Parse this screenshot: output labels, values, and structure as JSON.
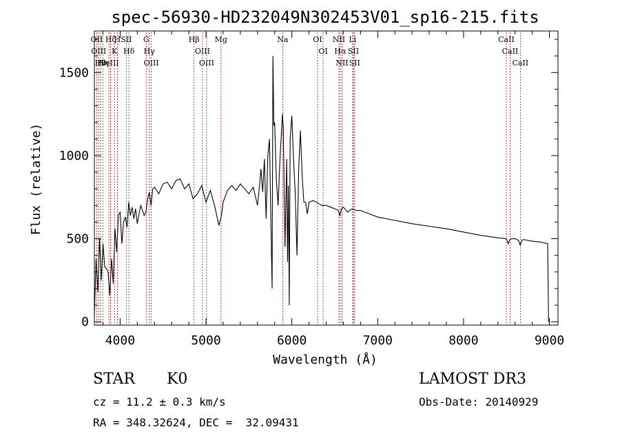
{
  "chart_data": {
    "type": "line",
    "title": "spec-56930-HD232049N302453V01_sp16-215.fits",
    "xlabel": "Wavelength (Å)",
    "ylabel": "Flux (relative)",
    "xlim": [
      3700,
      9100
    ],
    "ylim": [
      -20,
      1750
    ],
    "x_ticks": [
      4000,
      5000,
      6000,
      7000,
      8000,
      9000
    ],
    "y_ticks": [
      0,
      500,
      1000,
      1500
    ],
    "grid": false,
    "line_color": "#000000",
    "marker_color": "#cc0000",
    "series": [
      {
        "x": [
          3700,
          3720,
          3740,
          3760,
          3780,
          3800,
          3820,
          3840,
          3860,
          3880,
          3900,
          3920,
          3940,
          3960,
          3980,
          4000,
          4020,
          4040,
          4060,
          4080,
          4100,
          4120,
          4140,
          4160,
          4180,
          4200,
          4220,
          4240,
          4260,
          4280,
          4300,
          4320,
          4340,
          4360,
          4380,
          4400,
          4450,
          4500,
          4550,
          4600,
          4650,
          4700,
          4750,
          4800,
          4850,
          4900,
          4950,
          5000,
          5050,
          5100,
          5150,
          5180,
          5200,
          5250,
          5300,
          5350,
          5400,
          5450,
          5500,
          5550,
          5600,
          5620,
          5640,
          5660,
          5680,
          5700,
          5720,
          5740,
          5760,
          5770,
          5780,
          5790,
          5800,
          5820,
          5840,
          5860,
          5880,
          5890,
          5900,
          5920,
          5940,
          5950,
          5960,
          5970,
          5980,
          6000,
          6020,
          6040,
          6060,
          6080,
          6100,
          6120,
          6140,
          6160,
          6180,
          6200,
          6250,
          6300,
          6350,
          6400,
          6450,
          6500,
          6540,
          6560,
          6580,
          6600,
          6650,
          6700,
          6750,
          6800,
          6900,
          7000,
          7200,
          7400,
          7600,
          7800,
          8000,
          8200,
          8400,
          8500,
          8520,
          8540,
          8560,
          8600,
          8640,
          8660,
          8680,
          8700,
          8800,
          8900,
          8980,
          8990,
          9000
        ],
        "y": [
          40,
          380,
          180,
          500,
          250,
          470,
          330,
          320,
          300,
          160,
          380,
          230,
          560,
          420,
          640,
          660,
          470,
          600,
          630,
          570,
          720,
          640,
          690,
          620,
          680,
          590,
          650,
          700,
          670,
          640,
          660,
          740,
          780,
          700,
          800,
          810,
          770,
          830,
          840,
          800,
          850,
          860,
          800,
          830,
          740,
          770,
          820,
          720,
          790,
          700,
          580,
          640,
          720,
          790,
          820,
          790,
          830,
          800,
          770,
          810,
          700,
          800,
          920,
          780,
          980,
          620,
          1000,
          1100,
          500,
          200,
          1600,
          1180,
          1200,
          850,
          700,
          960,
          1150,
          1250,
          1170,
          450,
          980,
          360,
          820,
          100,
          1100,
          1240,
          980,
          770,
          400,
          920,
          1150,
          880,
          720,
          720,
          650,
          720,
          730,
          715,
          700,
          700,
          690,
          680,
          670,
          640,
          680,
          690,
          660,
          680,
          670,
          670,
          650,
          630,
          610,
          590,
          575,
          560,
          540,
          520,
          505,
          500,
          470,
          495,
          500,
          500,
          490,
          460,
          490,
          495,
          485,
          480,
          470,
          0,
          0
        ]
      }
    ],
    "line_markers": [
      {
        "x": 3727,
        "label": "OII"
      },
      {
        "x": 3750,
        "label": "OIII"
      },
      {
        "x": 3771,
        "label": "Hθ"
      },
      {
        "x": 3798,
        "label": "Hη"
      },
      {
        "x": 3869,
        "label": "NeIII"
      },
      {
        "x": 3889,
        "label": "Hζ"
      },
      {
        "x": 3934,
        "label": "K"
      },
      {
        "x": 3968,
        "label": "H"
      },
      {
        "x": 4072,
        "label": "SII"
      },
      {
        "x": 4102,
        "label": "Hδ"
      },
      {
        "x": 4304,
        "label": "G"
      },
      {
        "x": 4340,
        "label": "Hγ"
      },
      {
        "x": 4363,
        "label": "OIII"
      },
      {
        "x": 4861,
        "label": "Hβ"
      },
      {
        "x": 4959,
        "label": "OIII"
      },
      {
        "x": 5007,
        "label": "OIII"
      },
      {
        "x": 5175,
        "label": "Mg"
      },
      {
        "x": 5893,
        "label": "Na"
      },
      {
        "x": 6300,
        "label": "OI"
      },
      {
        "x": 6364,
        "label": "OI"
      },
      {
        "x": 6548,
        "label": "NII"
      },
      {
        "x": 6563,
        "label": "Hα"
      },
      {
        "x": 6584,
        "label": "NII"
      },
      {
        "x": 6708,
        "label": "Li"
      },
      {
        "x": 6717,
        "label": "SII"
      },
      {
        "x": 6731,
        "label": "SII"
      },
      {
        "x": 8498,
        "label": "CaII"
      },
      {
        "x": 8542,
        "label": "CaII"
      },
      {
        "x": 8662,
        "label": "CaII"
      }
    ]
  },
  "info": {
    "class_label": "STAR",
    "subclass": "K0",
    "survey": "LAMOST DR3",
    "redshift": "cz = 11.2 ± 0.3 km/s",
    "obs_date": "Obs-Date: 20140929",
    "coords": "RA = 348.32624, DEC =  32.09431"
  }
}
